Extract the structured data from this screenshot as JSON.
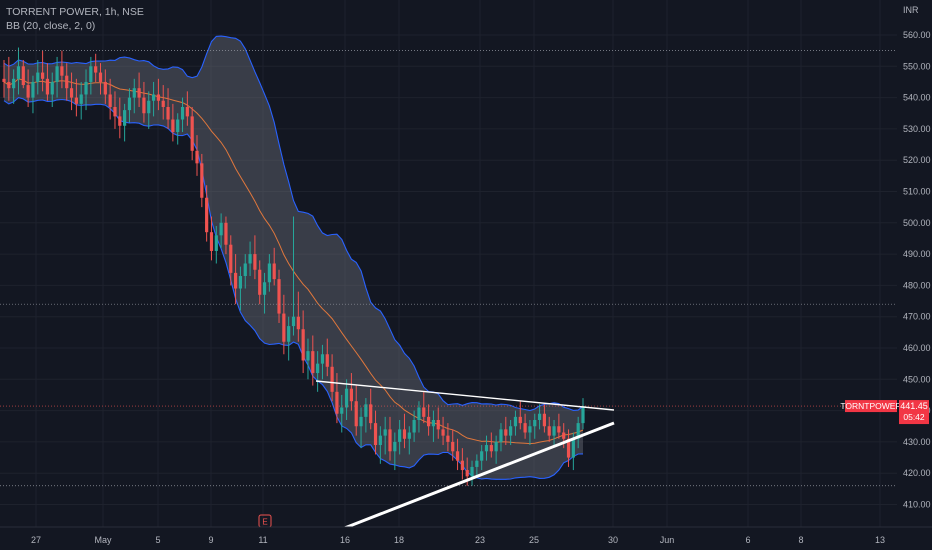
{
  "header": {
    "line1": "TORRENT POWER, 1h, NSE",
    "line2": "BB (20, close, 2, 0)"
  },
  "chart_data": {
    "type": "candlestick",
    "currency": "INR",
    "ylim": [
      404,
      568
    ],
    "y_ticks": [
      410,
      420,
      430,
      440,
      450,
      460,
      470,
      480,
      490,
      500,
      510,
      520,
      530,
      540,
      550,
      560
    ],
    "x_ticks": [
      "27",
      "May",
      "5",
      "9",
      "11",
      "16",
      "18",
      "23",
      "25",
      "30",
      "Jun",
      "6",
      "8",
      "13"
    ],
    "horizontal_levels": [
      555,
      474,
      441.45,
      416
    ],
    "last_price": {
      "symbol": "TORNTPOWER",
      "value": "441.45",
      "countdown": "05:42"
    },
    "candles_ohlc": [
      [
        546,
        552,
        540,
        545
      ],
      [
        545,
        553,
        539,
        543
      ],
      [
        543,
        549,
        538,
        546
      ],
      [
        546,
        556,
        541,
        550
      ],
      [
        550,
        552,
        543,
        544
      ],
      [
        544,
        549,
        537,
        540
      ],
      [
        540,
        547,
        535,
        545
      ],
      [
        545,
        552,
        541,
        548
      ],
      [
        548,
        555,
        542,
        546
      ],
      [
        546,
        551,
        539,
        541
      ],
      [
        541,
        548,
        537,
        545
      ],
      [
        545,
        553,
        540,
        550
      ],
      [
        550,
        555,
        543,
        547
      ],
      [
        547,
        551,
        539,
        543
      ],
      [
        543,
        548,
        536,
        540
      ],
      [
        540,
        546,
        534,
        538
      ],
      [
        538,
        545,
        533,
        541
      ],
      [
        541,
        549,
        536,
        545
      ],
      [
        545,
        553,
        541,
        550
      ],
      [
        550,
        554,
        545,
        548
      ],
      [
        548,
        551,
        541,
        545
      ],
      [
        545,
        549,
        538,
        541
      ],
      [
        541,
        546,
        533,
        537
      ],
      [
        537,
        542,
        530,
        534
      ],
      [
        534,
        540,
        527,
        531
      ],
      [
        531,
        538,
        526,
        536
      ],
      [
        536,
        543,
        532,
        540
      ],
      [
        540,
        546,
        535,
        543
      ],
      [
        543,
        548,
        537,
        540
      ],
      [
        540,
        545,
        532,
        535
      ],
      [
        535,
        542,
        530,
        539
      ],
      [
        539,
        545,
        534,
        541
      ],
      [
        541,
        546,
        536,
        539
      ],
      [
        539,
        544,
        533,
        537
      ],
      [
        537,
        543,
        530,
        533
      ],
      [
        533,
        538,
        526,
        529
      ],
      [
        529,
        535,
        525,
        533
      ],
      [
        533,
        540,
        529,
        537
      ],
      [
        537,
        542,
        531,
        534
      ],
      [
        534,
        537,
        520,
        523
      ],
      [
        523,
        528,
        515,
        519
      ],
      [
        519,
        522,
        505,
        508
      ],
      [
        508,
        512,
        494,
        497
      ],
      [
        497,
        502,
        488,
        491
      ],
      [
        491,
        499,
        487,
        496
      ],
      [
        496,
        503,
        492,
        500
      ],
      [
        500,
        502,
        490,
        493
      ],
      [
        493,
        496,
        480,
        484
      ],
      [
        484,
        490,
        474,
        479
      ],
      [
        479,
        486,
        472,
        483
      ],
      [
        483,
        490,
        479,
        487
      ],
      [
        487,
        494,
        483,
        490
      ],
      [
        490,
        496,
        482,
        485
      ],
      [
        485,
        488,
        474,
        477
      ],
      [
        477,
        484,
        471,
        481
      ],
      [
        481,
        490,
        478,
        487
      ],
      [
        487,
        492,
        480,
        482
      ],
      [
        482,
        485,
        468,
        471
      ],
      [
        471,
        477,
        458,
        462
      ],
      [
        462,
        470,
        456,
        467
      ],
      [
        467,
        502,
        464,
        470
      ],
      [
        470,
        478,
        462,
        466
      ],
      [
        466,
        472,
        452,
        456
      ],
      [
        456,
        463,
        450,
        459
      ],
      [
        459,
        464,
        448,
        452
      ],
      [
        452,
        459,
        446,
        455
      ],
      [
        455,
        461,
        450,
        458
      ],
      [
        458,
        463,
        451,
        454
      ],
      [
        454,
        458,
        443,
        446
      ],
      [
        446,
        452,
        436,
        439
      ],
      [
        439,
        445,
        433,
        441
      ],
      [
        441,
        450,
        437,
        447
      ],
      [
        447,
        452,
        440,
        443
      ],
      [
        443,
        448,
        432,
        435
      ],
      [
        435,
        441,
        428,
        438
      ],
      [
        438,
        444,
        433,
        442
      ],
      [
        442,
        447,
        434,
        436
      ],
      [
        436,
        440,
        426,
        429
      ],
      [
        429,
        435,
        423,
        432
      ],
      [
        432,
        438,
        426,
        434
      ],
      [
        434,
        438,
        424,
        427
      ],
      [
        427,
        433,
        421,
        430
      ],
      [
        430,
        437,
        426,
        434
      ],
      [
        434,
        439,
        428,
        431
      ],
      [
        431,
        435,
        426,
        433
      ],
      [
        433,
        440,
        430,
        437
      ],
      [
        437,
        443,
        433,
        441
      ],
      [
        441,
        446,
        436,
        438
      ],
      [
        438,
        442,
        432,
        435
      ],
      [
        435,
        440,
        430,
        437
      ],
      [
        437,
        441,
        431,
        434
      ],
      [
        434,
        438,
        429,
        432
      ],
      [
        432,
        436,
        427,
        430
      ],
      [
        430,
        434,
        424,
        427
      ],
      [
        427,
        431,
        421,
        424
      ],
      [
        424,
        428,
        418,
        421
      ],
      [
        421,
        425,
        416,
        419
      ],
      [
        419,
        424,
        416,
        422
      ],
      [
        422,
        426,
        419,
        424
      ],
      [
        424,
        429,
        421,
        427
      ],
      [
        427,
        432,
        424,
        429
      ],
      [
        429,
        433,
        425,
        427
      ],
      [
        427,
        432,
        423,
        430
      ],
      [
        430,
        436,
        427,
        434
      ],
      [
        434,
        438,
        429,
        432
      ],
      [
        432,
        437,
        429,
        435
      ],
      [
        435,
        440,
        432,
        438
      ],
      [
        438,
        443,
        434,
        436
      ],
      [
        436,
        439,
        431,
        433
      ],
      [
        433,
        437,
        429,
        435
      ],
      [
        435,
        439,
        431,
        437
      ],
      [
        437,
        442,
        434,
        439
      ],
      [
        439,
        442,
        433,
        435
      ],
      [
        435,
        438,
        430,
        432
      ],
      [
        432,
        437,
        429,
        435
      ],
      [
        435,
        439,
        431,
        433
      ],
      [
        433,
        436,
        428,
        431
      ],
      [
        431,
        434,
        422,
        425
      ],
      [
        425,
        433,
        421,
        431
      ],
      [
        431,
        438,
        428,
        436
      ],
      [
        436,
        444,
        434,
        441.45
      ]
    ]
  }
}
